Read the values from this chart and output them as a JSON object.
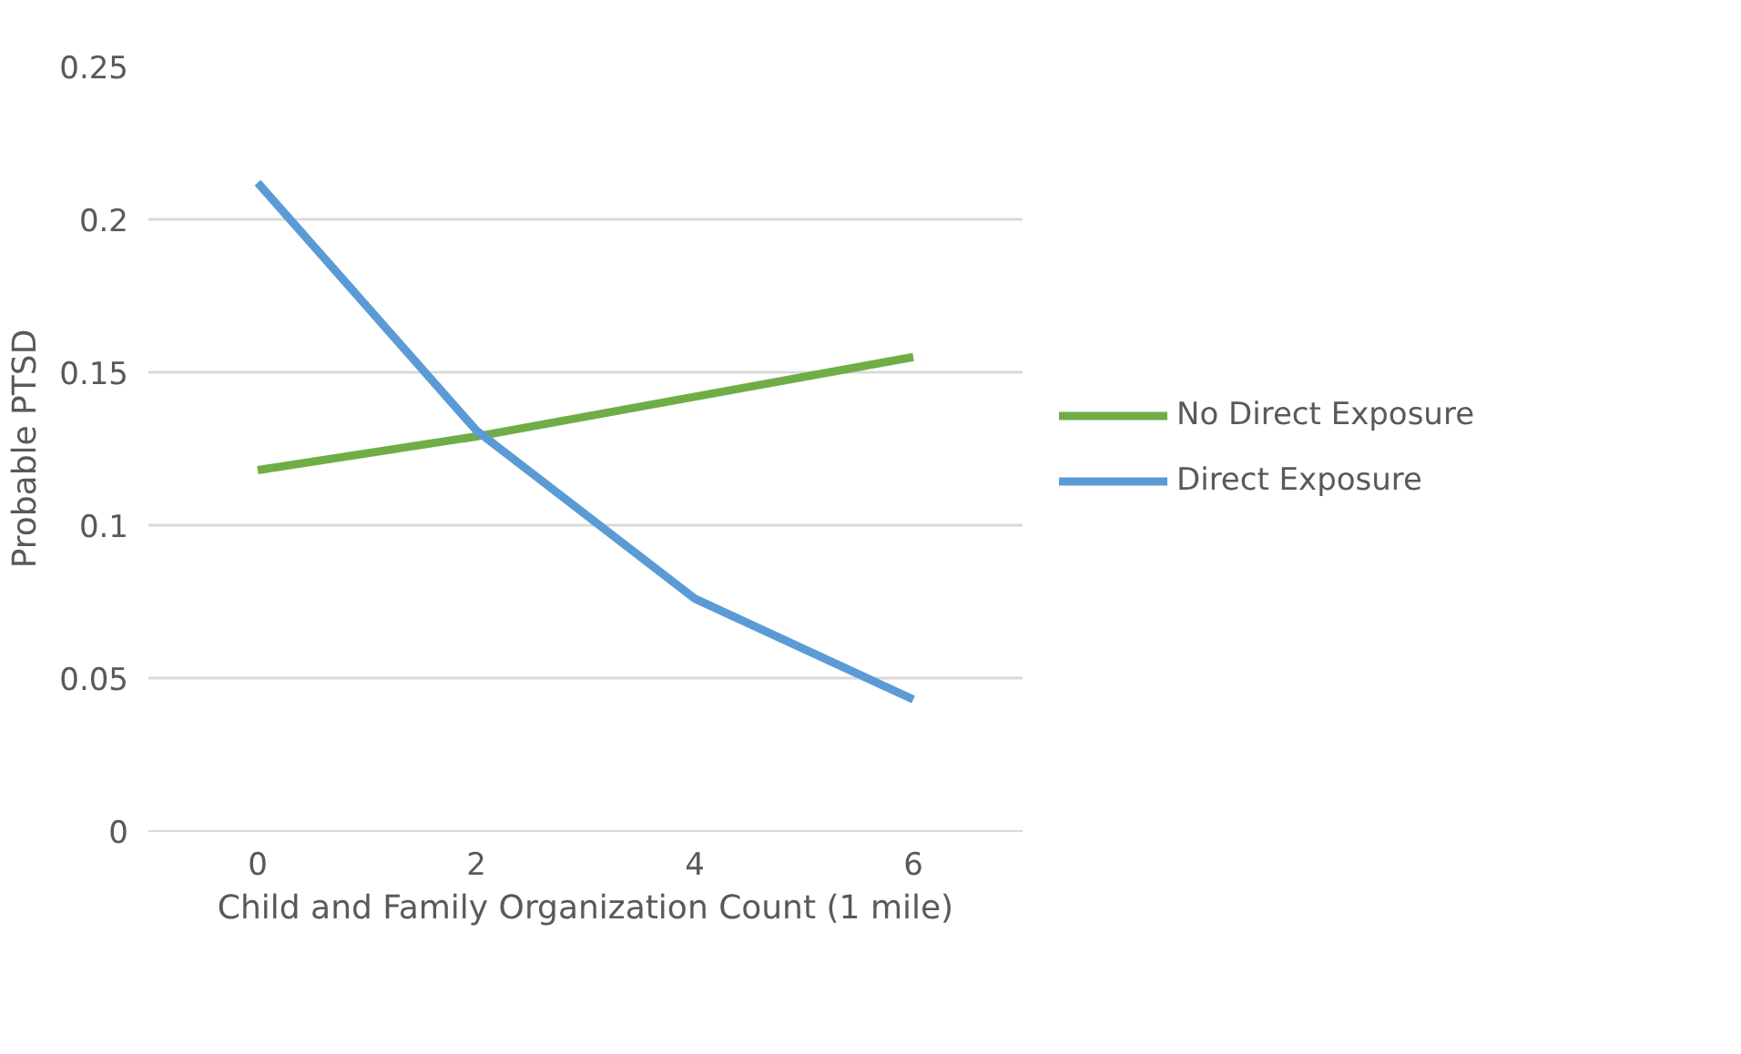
{
  "chart_data": {
    "type": "line",
    "xlabel": "Child and Family Organization Count (1 mile)",
    "ylabel": "Probable PTSD",
    "categories": [
      "0",
      "2",
      "4",
      "6"
    ],
    "series": [
      {
        "name": "No Direct Exposure",
        "color": "#70ad47",
        "values": [
          0.118,
          0.129,
          0.142,
          0.155
        ]
      },
      {
        "name": "Direct Exposure",
        "color": "#5b9bd5",
        "values": [
          0.212,
          0.131,
          0.076,
          0.043
        ]
      }
    ],
    "ylim": [
      0,
      0.25
    ],
    "yticks": [
      0,
      0.05,
      0.1,
      0.15,
      0.2,
      0.25
    ],
    "grid": "y",
    "legend": "right"
  }
}
